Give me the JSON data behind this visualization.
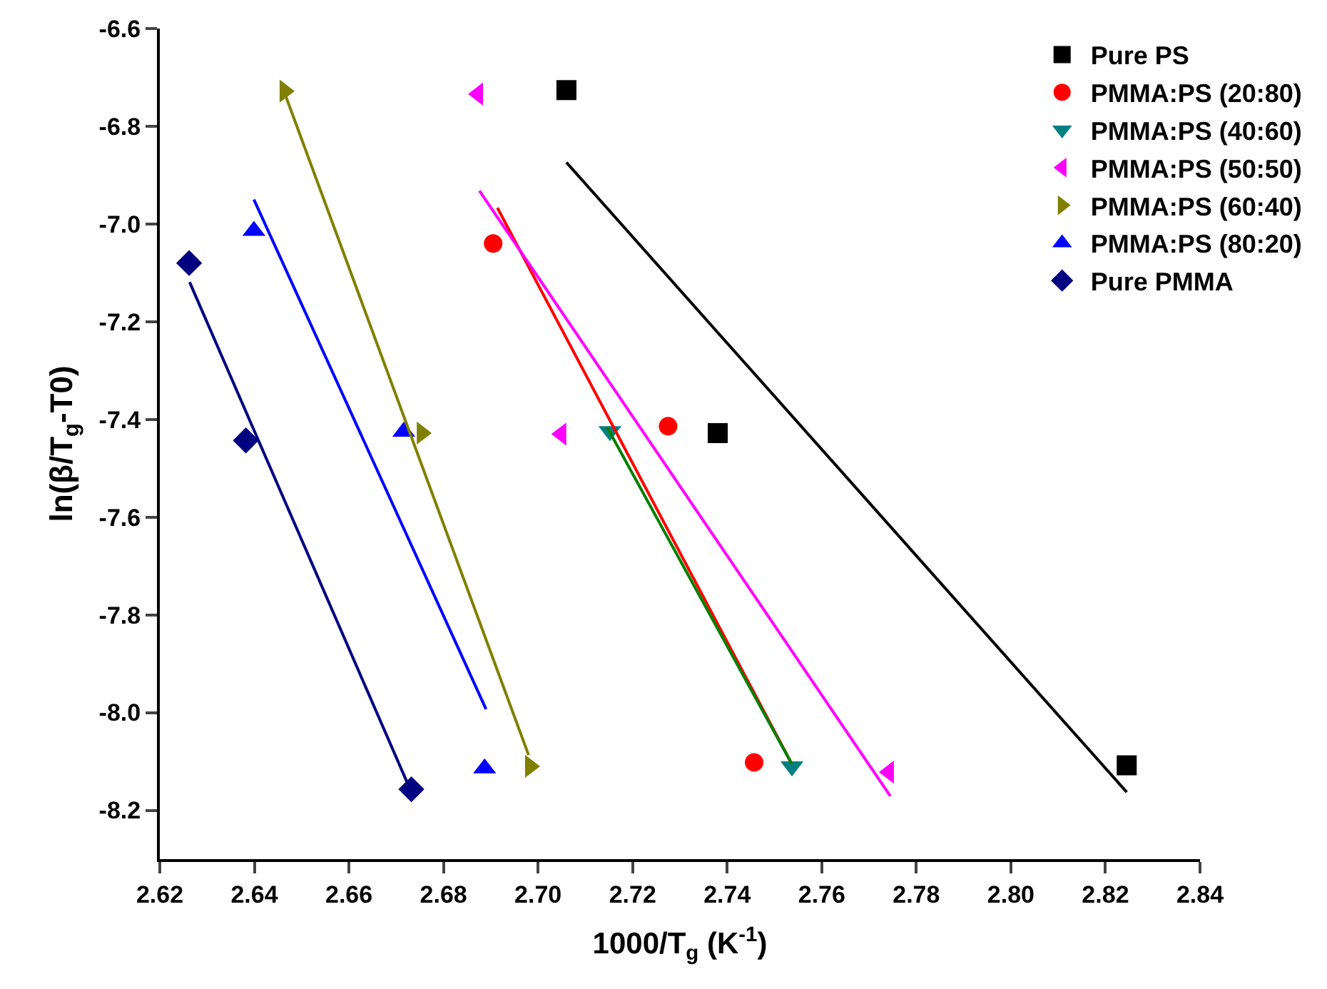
{
  "chart_data": {
    "type": "scatter",
    "xlabel": "1000/T$_{g}$ (K$^{-1}$)",
    "ylabel": "ln(β/T$_{g}$-T0)",
    "xlim": [
      2.62,
      2.84
    ],
    "xticks": [
      2.62,
      2.64,
      2.66,
      2.68,
      {
        "value": 2.7,
        "label": "2.70"
      },
      2.72,
      2.74,
      2.76,
      2.78,
      {
        "value": 2.8,
        "label": "2.80"
      },
      2.82,
      2.84
    ],
    "ylim": [
      -8.3,
      -6.6
    ],
    "yticks": [
      -8.2,
      {
        "value": -8,
        "label": "-8.0"
      },
      -7.8,
      -7.6,
      -7.4,
      -7.2,
      {
        "value": -7,
        "label": "-7.0"
      },
      -6.8,
      -6.6
    ],
    "grid": false,
    "legend": "top right",
    "series": [
      {
        "name": "Pure PS",
        "color": "#000000",
        "marker": "square",
        "x": [
          2.706,
          2.738,
          2.8245
        ],
        "values": [
          -6.726,
          -7.428,
          -8.108
        ]
      },
      {
        "name": "PMMA:PS (20:80)",
        "color": "#ff0000",
        "marker": "circle",
        "x": [
          2.6905,
          2.7275,
          2.7457
        ],
        "values": [
          -7.04,
          -7.414,
          -8.102
        ]
      },
      {
        "name": "PMMA:PS (40:60)",
        "color": "#008080",
        "marker": "triangle-down",
        "x": [
          2.7152,
          2.7537
        ],
        "values": [
          -7.424,
          -8.11
        ]
      },
      {
        "name": "PMMA:PS (50:50)",
        "color": "#ff00ff",
        "marker": "triangle-left",
        "x": [
          2.6873,
          2.7049,
          2.7742
        ],
        "values": [
          -6.734,
          -7.43,
          -8.122
        ]
      },
      {
        "name": "PMMA:PS (60:40)",
        "color": "#808000",
        "marker": "triangle-right",
        "x": [
          2.6464,
          2.6754,
          2.6983
        ],
        "values": [
          -6.728,
          -7.428,
          -8.11
        ]
      },
      {
        "name": "PMMA:PS (80:20)",
        "color": "#0000ff",
        "marker": "triangle",
        "x": [
          2.6399,
          2.6716,
          2.6887
        ],
        "values": [
          -7.014,
          -7.425,
          -8.114
        ]
      },
      {
        "name": "Pure PMMA",
        "color": "#000080",
        "marker": "diamond",
        "x": [
          2.6262,
          2.6382,
          2.6732
        ],
        "values": [
          -7.08,
          -7.443,
          -8.157
        ]
      },
      {
        "type": "line",
        "color": "#000000",
        "marker": "none",
        "x": [
          2.706,
          2.8245
        ],
        "values": [
          -6.874,
          -8.163
        ]
      },
      {
        "type": "line",
        "color": "#ff0000",
        "marker": "none",
        "x": [
          2.6914,
          2.7536
        ],
        "values": [
          -6.967,
          -8.104
        ]
      },
      {
        "type": "line",
        "color": "#008000",
        "marker": "none",
        "x": [
          2.7146,
          2.7536
        ],
        "values": [
          -7.416,
          -8.104
        ]
      },
      {
        "type": "line",
        "color": "#ff00ff",
        "marker": "none",
        "x": [
          2.6876,
          2.7745
        ],
        "values": [
          -6.932,
          -8.171
        ]
      },
      {
        "type": "line",
        "color": "#808000",
        "marker": "none",
        "x": [
          2.6456,
          2.698
        ],
        "values": [
          -6.711,
          -8.087
        ]
      },
      {
        "type": "line",
        "color": "#0000ff",
        "marker": "none",
        "x": [
          2.6399,
          2.689
        ],
        "values": [
          -6.95,
          -7.993
        ]
      },
      {
        "type": "line",
        "color": "#000080",
        "marker": "none",
        "x": [
          2.6263,
          2.6724
        ],
        "values": [
          -7.119,
          -8.145
        ]
      }
    ]
  }
}
